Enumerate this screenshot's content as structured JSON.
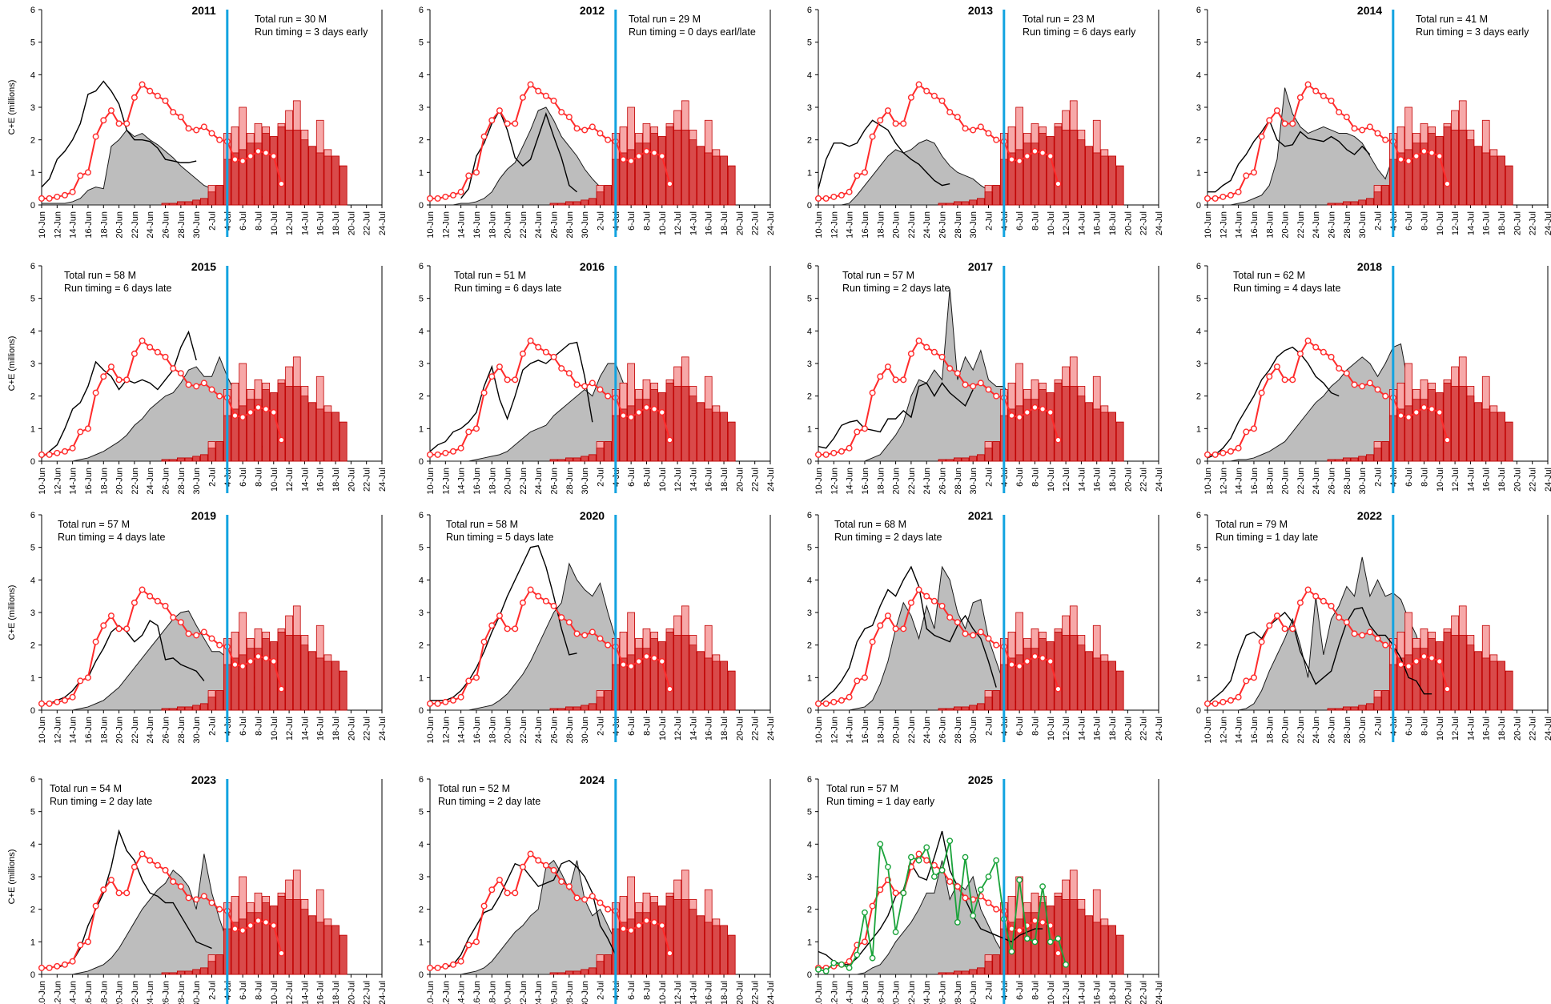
{
  "colors": {
    "gray_fill": "#bdbdbd",
    "gray_stroke": "#1a1a1a",
    "black_line": "#000000",
    "dark_red_bar": "#d94a4a",
    "light_red_bar": "#f7a8a8",
    "bar_stroke": "#c00000",
    "red_line": "#ff2b2b",
    "green_line": "#1aa33a",
    "blue_marker": "#12a3e0"
  },
  "y_axis_label": "C+E (millions)",
  "chart_data": {
    "type": "area",
    "layout": "small-multiples grid, 4 columns x 4 rows, 15 panels",
    "x_tick_labels": [
      "10-Jun",
      "12-Jun",
      "14-Jun",
      "16-Jun",
      "18-Jun",
      "20-Jun",
      "22-Jun",
      "24-Jun",
      "26-Jun",
      "28-Jun",
      "30-Jun",
      "2-Jul",
      "4-Jul",
      "6-Jul",
      "8-Jul",
      "10-Jul",
      "12-Jul",
      "14-Jul",
      "16-Jul",
      "18-Jul",
      "20-Jul",
      "22-Jul",
      "24-Jul"
    ],
    "x_day_range": [
      0,
      44
    ],
    "ylim": [
      0,
      6
    ],
    "y_ticks": [
      0,
      1,
      2,
      3,
      4,
      5,
      6
    ],
    "blue_marker_day": 24,
    "current_year": {
      "bar_start_day": 16,
      "daily_bar_values": [
        0.05,
        0.05,
        0.1,
        0.1,
        0.15,
        0.2,
        0.4,
        0.6,
        1.4,
        1.6,
        1.7,
        1.9,
        1.9,
        2.2,
        2.1,
        2.4,
        2.3,
        2.3,
        2.0,
        1.8,
        1.6,
        1.5,
        1.5,
        1.2
      ],
      "cumulative_bar_values": [
        0.05,
        0.05,
        0.1,
        0.1,
        0.15,
        0.2,
        0.6,
        0.6,
        2.2,
        2.4,
        3.0,
        2.2,
        2.5,
        2.4,
        2.1,
        2.5,
        2.9,
        3.2,
        2.3,
        1.8,
        2.6,
        1.7,
        1.5,
        1.2
      ],
      "comparison_line_start_day": 0,
      "comparison_line": [
        0.2,
        0.2,
        0.25,
        0.3,
        0.4,
        0.9,
        1.0,
        2.1,
        2.6,
        2.9,
        2.5,
        2.5,
        3.3,
        3.7,
        3.5,
        3.35,
        3.2,
        2.85,
        2.7,
        2.35,
        2.3,
        2.4,
        2.2,
        2.0,
        1.95,
        1.4,
        1.35,
        1.5,
        1.65,
        1.6,
        1.5,
        0.65
      ]
    },
    "green_series": {
      "start_day": 0,
      "values": [
        0.15,
        0.1,
        0.35,
        0.3,
        0.2,
        0.6,
        1.9,
        0.5,
        4.0,
        3.3,
        1.3,
        2.5,
        3.6,
        3.5,
        3.9,
        3.0,
        3.2,
        4.1,
        1.6,
        3.6,
        1.8,
        2.6,
        3.0,
        3.5,
        1.7,
        0.7,
        2.9,
        1.1,
        1.0,
        2.7,
        1.0,
        1.1,
        0.3
      ]
    },
    "panels": [
      {
        "year": "2011",
        "total_run": "Total run = 30 M",
        "run_timing": "Run timing = 3 days early",
        "historical_start_day": 0,
        "historical": [
          0.05,
          0.05,
          0.05,
          0.05,
          0.1,
          0.2,
          0.45,
          0.55,
          0.5,
          1.8,
          2.0,
          2.3,
          2.1,
          2.2,
          2.0,
          1.85,
          1.65,
          1.45,
          1.2,
          1.0,
          0.8,
          0.6,
          0.5,
          0.4,
          0.6,
          0.5,
          0.55,
          0.35,
          0.3,
          0.2,
          0.15,
          0.1,
          0.05,
          0.03,
          0.02
        ],
        "line_start_day": 0,
        "line": [
          0.55,
          0.8,
          1.4,
          1.65,
          2.0,
          2.5,
          3.4,
          3.5,
          3.8,
          3.5,
          3.1,
          2.3,
          2.0,
          2.0,
          1.95,
          1.75,
          1.4,
          1.35,
          1.3,
          1.3,
          1.35
        ]
      },
      {
        "year": "2012",
        "total_run": "Total run = 29 M",
        "run_timing": "Run timing = 0 days earl/late",
        "historical_start_day": 0,
        "historical": [
          0,
          0,
          0,
          0,
          0.05,
          0.05,
          0.1,
          0.2,
          0.4,
          0.8,
          1.1,
          1.3,
          1.8,
          2.3,
          2.9,
          3.0,
          2.6,
          2.1,
          1.8,
          1.5,
          1.1,
          0.8,
          0.55,
          0.4,
          0.3,
          0.25,
          0.2,
          0.15,
          0.1,
          0.05,
          0.02
        ],
        "line_start_day": 4,
        "line": [
          0.2,
          0.5,
          1.5,
          1.9,
          2.5,
          2.9,
          2.3,
          1.45,
          1.2,
          1.4,
          2.1,
          2.8,
          2.1,
          1.45,
          0.6,
          0.4
        ]
      },
      {
        "year": "2013",
        "total_run": "Total run = 23 M",
        "run_timing": "Run timing = 6 days early",
        "historical_start_day": 0,
        "historical": [
          0,
          0,
          0,
          0,
          0.05,
          0.3,
          0.6,
          0.9,
          1.2,
          1.5,
          1.7,
          1.6,
          1.7,
          1.9,
          2.0,
          1.9,
          1.5,
          1.2,
          1.0,
          0.9,
          0.8,
          0.6,
          0.45,
          0.3,
          0.15,
          0.05,
          0,
          0,
          0,
          0,
          0
        ],
        "line_start_day": 0,
        "line": [
          0.5,
          1.4,
          1.9,
          1.9,
          1.8,
          1.9,
          2.3,
          2.6,
          2.45,
          2.3,
          1.9,
          1.6,
          1.4,
          1.25,
          1.0,
          0.75,
          0.6,
          0.65
        ]
      },
      {
        "year": "2014",
        "total_run": "Total run = 41 M",
        "run_timing": "Run timing = 3 days early",
        "historical_start_day": 0,
        "historical": [
          0,
          0,
          0,
          0,
          0.05,
          0.1,
          0.2,
          0.3,
          0.6,
          1.4,
          3.6,
          2.8,
          2.4,
          2.2,
          2.3,
          2.4,
          2.3,
          2.2,
          2.2,
          2.1,
          1.9,
          1.5,
          1.1,
          0.8,
          1.5,
          0.9,
          0.5,
          0.3,
          0.1,
          0.05,
          0.02,
          0.01
        ],
        "line_start_day": 0,
        "line": [
          0.4,
          0.4,
          0.6,
          0.75,
          1.25,
          1.55,
          1.95,
          2.25,
          2.6,
          2.0,
          1.8,
          1.85,
          2.25,
          2.05,
          2.0,
          1.95,
          2.1,
          1.95,
          1.7,
          1.55,
          1.8,
          1.55
        ]
      },
      {
        "year": "2015",
        "total_run": "Total run = 58 M",
        "run_timing": "Run timing = 6 days late",
        "historical_start_day": 0,
        "historical": [
          0,
          0,
          0,
          0,
          0,
          0.05,
          0.1,
          0.2,
          0.3,
          0.45,
          0.6,
          0.8,
          1.1,
          1.3,
          1.6,
          1.8,
          2.0,
          2.1,
          2.4,
          2.8,
          2.9,
          2.6,
          2.6,
          3.2,
          2.6,
          2.1,
          1.6,
          1.1,
          0.6,
          0.3
        ],
        "line_start_day": 0,
        "line": [
          0.1,
          0.3,
          0.5,
          1.0,
          1.6,
          1.8,
          2.3,
          3.05,
          2.8,
          2.6,
          2.2,
          2.5,
          2.4,
          2.5,
          2.4,
          2.2,
          2.5,
          2.8,
          3.5,
          3.97,
          3.1
        ]
      },
      {
        "year": "2016",
        "total_run": "Total run = 51 M",
        "run_timing": "Run timing = 6 days late",
        "historical_start_day": 0,
        "historical": [
          0,
          0,
          0,
          0,
          0,
          0,
          0.05,
          0.1,
          0.15,
          0.2,
          0.3,
          0.5,
          0.7,
          0.9,
          1.0,
          1.1,
          1.4,
          1.6,
          1.8,
          2.0,
          2.2,
          2.0,
          2.6,
          3.0,
          3.0,
          2.4,
          2.3,
          2.0,
          1.4,
          1.0,
          0.6,
          0.4
        ],
        "line_start_day": 0,
        "line": [
          0.3,
          0.5,
          0.6,
          0.9,
          1.0,
          1.2,
          1.5,
          2.3,
          2.9,
          1.9,
          1.3,
          2.0,
          2.8,
          3.0,
          3.1,
          3.0,
          3.2,
          3.4,
          3.6,
          3.65,
          2.6,
          1.2
        ]
      },
      {
        "year": "2017",
        "total_run": "Total run = 57 M",
        "run_timing": "Run timing = 2 days late",
        "historical_start_day": 0,
        "historical": [
          0,
          0,
          0,
          0,
          0,
          0,
          0,
          0.1,
          0.2,
          0.5,
          0.8,
          1.2,
          2.0,
          2.5,
          2.4,
          2.8,
          2.5,
          5.3,
          2.5,
          3.2,
          2.8,
          3.4,
          2.5,
          2.3,
          2.3,
          1.9,
          1.4,
          1.1,
          0.7,
          0.1,
          0,
          0,
          0
        ],
        "line_start_day": 0,
        "line": [
          0.45,
          0.4,
          0.7,
          1.1,
          1.2,
          1.25,
          1.0,
          0.95,
          0.9,
          1.3,
          1.3,
          1.55,
          1.35,
          2.3,
          2.4,
          2.0,
          2.4,
          2.1,
          1.9,
          1.7,
          2.2
        ]
      },
      {
        "year": "2018",
        "total_run": "Total run = 62 M",
        "run_timing": "Run timing = 4 days late",
        "historical_start_day": 0,
        "historical": [
          0,
          0,
          0,
          0,
          0.05,
          0.05,
          0.1,
          0.2,
          0.3,
          0.45,
          0.6,
          0.9,
          1.2,
          1.5,
          1.8,
          2.0,
          2.3,
          2.5,
          2.8,
          3.0,
          3.2,
          3.0,
          2.6,
          3.0,
          3.5,
          3.6,
          2.3,
          1.5,
          1.0,
          0.6,
          0.4
        ],
        "line_start_day": 0,
        "line": [
          0.1,
          0.2,
          0.4,
          0.7,
          1.2,
          1.6,
          2.0,
          2.5,
          2.8,
          3.2,
          3.4,
          3.5,
          3.3,
          3.0,
          2.6,
          2.4,
          2.1,
          2.0
        ]
      },
      {
        "year": "2019",
        "total_run": "Total run = 57 M",
        "run_timing": "Run timing = 4 days late",
        "historical_start_day": 0,
        "historical": [
          0,
          0,
          0,
          0,
          0,
          0.05,
          0.1,
          0.2,
          0.3,
          0.5,
          0.7,
          1.0,
          1.3,
          1.6,
          1.9,
          2.2,
          2.5,
          2.8,
          3.0,
          3.05,
          2.6,
          2.2,
          1.8,
          1.8,
          1.6,
          1.8,
          1.5,
          1.0,
          0.4
        ],
        "line_start_day": 0,
        "line": [
          0.2,
          0.2,
          0.3,
          0.4,
          0.6,
          0.9,
          1.0,
          1.5,
          1.9,
          2.4,
          2.6,
          2.4,
          2.1,
          2.3,
          2.75,
          2.6,
          1.55,
          1.6,
          1.4,
          1.3,
          1.2,
          0.9
        ]
      },
      {
        "year": "2020",
        "total_run": "Total run = 58 M",
        "run_timing": "Run timing = 5 days late",
        "historical_start_day": 0,
        "historical": [
          0,
          0,
          0,
          0,
          0,
          0,
          0.05,
          0.1,
          0.15,
          0.3,
          0.5,
          0.8,
          1.1,
          1.5,
          2.0,
          2.5,
          3.0,
          3.3,
          4.5,
          4.0,
          3.7,
          3.5,
          3.9,
          3.0,
          2.2,
          1.5,
          1.0,
          0.9,
          0.8,
          0.5
        ],
        "line_start_day": 0,
        "line": [
          0.3,
          0.3,
          0.3,
          0.4,
          0.6,
          0.9,
          1.3,
          1.8,
          2.4,
          2.9,
          3.5,
          4.0,
          4.5,
          5.0,
          5.05,
          4.4,
          3.5,
          2.5,
          1.7,
          1.75
        ]
      },
      {
        "year": "2021",
        "total_run": "Total run = 68 M",
        "run_timing": "Run timing = 2 days late",
        "historical_start_day": 0,
        "historical": [
          0,
          0,
          0,
          0,
          0,
          0.05,
          0.1,
          0.3,
          0.8,
          1.5,
          2.5,
          3.3,
          2.9,
          2.2,
          3.2,
          2.5,
          4.4,
          4.0,
          3.0,
          2.5,
          3.3,
          3.4,
          2.2,
          1.5,
          0.8,
          0.4,
          0.1,
          0
        ],
        "line_start_day": 0,
        "line": [
          0.2,
          0.4,
          0.6,
          0.9,
          1.3,
          2.1,
          2.5,
          2.6,
          3.2,
          3.7,
          3.5,
          4.0,
          4.4,
          3.8,
          2.5,
          2.3,
          2.2,
          2.1,
          2.6,
          2.9,
          2.5,
          2.2,
          1.5,
          0.7
        ]
      },
      {
        "year": "2022",
        "total_run": "Total run = 79 M",
        "run_timing": "Run timing = 1 day late",
        "historical_start_day": 0,
        "historical": [
          0,
          0,
          0,
          0,
          0,
          0.05,
          0.2,
          0.6,
          1.2,
          1.7,
          2.2,
          2.8,
          2.0,
          1.0,
          3.5,
          1.7,
          2.8,
          3.2,
          3.8,
          3.5,
          4.7,
          3.5,
          4.0,
          3.5,
          3.6,
          3.4,
          2.8,
          2.3,
          1.5,
          0.5,
          0
        ],
        "line_start_day": 0,
        "line": [
          0.2,
          0.4,
          0.6,
          0.9,
          1.7,
          2.3,
          2.4,
          2.2,
          2.6,
          2.8,
          3.0,
          2.7,
          1.8,
          1.3,
          0.8,
          1.0,
          1.2,
          2.0,
          2.7,
          3.1,
          3.15,
          2.6,
          2.3,
          2.3,
          2.0,
          1.6,
          1.0,
          0.9,
          0.5,
          0.5
        ]
      },
      {
        "year": "2023",
        "total_run": "Total run = 54 M",
        "run_timing": "Run timing = 2 day late",
        "historical_start_day": 0,
        "historical": [
          0,
          0,
          0,
          0,
          0,
          0.05,
          0.1,
          0.2,
          0.3,
          0.5,
          0.8,
          1.2,
          1.6,
          2.0,
          2.3,
          2.6,
          2.8,
          3.2,
          3.0,
          2.7,
          2.0,
          3.7,
          2.5,
          1.7,
          1.0,
          1.2,
          0.9,
          0.6,
          0.4,
          0.2
        ],
        "line_start_day": 2,
        "line": [
          0.2,
          0.3,
          0.4,
          0.8,
          1.5,
          2.0,
          2.5,
          3.3,
          4.4,
          3.8,
          3.5,
          2.9,
          2.5,
          2.4,
          2.2,
          2.2,
          1.8,
          1.4,
          1.0,
          0.9,
          0.8
        ]
      },
      {
        "year": "2024",
        "total_run": "Total run = 52 M",
        "run_timing": "Run timing = 2 day late",
        "historical_start_day": 0,
        "historical": [
          0,
          0,
          0,
          0,
          0,
          0.05,
          0.1,
          0.2,
          0.4,
          0.7,
          1.0,
          1.3,
          1.5,
          1.8,
          2.0,
          3.3,
          3.5,
          3.1,
          2.6,
          3.5,
          2.3,
          1.8,
          2.0,
          1.5,
          1.0,
          0.4,
          0.3,
          0.4,
          0.3
        ],
        "line_start_day": 2,
        "line": [
          0.2,
          0.3,
          0.6,
          1.1,
          1.5,
          1.9,
          2.0,
          2.4,
          2.9,
          3.4,
          3.3,
          3.0,
          2.7,
          2.8,
          2.9,
          3.4,
          3.5,
          3.3,
          3.0,
          2.5,
          1.5,
          1.1,
          0.6
        ]
      },
      {
        "year": "2025",
        "total_run": "Total run = 57 M",
        "run_timing": "Run timing = 1 day early",
        "historical_start_day": 0,
        "historical": [
          0,
          0,
          0,
          0,
          0,
          0,
          0.05,
          0.2,
          0.3,
          0.6,
          1.0,
          1.3,
          1.6,
          2.0,
          2.5,
          2.5,
          3.5,
          2.3,
          2.8,
          2.6,
          3.0,
          2.0,
          1.5,
          1.0,
          0.6,
          0.5,
          0.4,
          0.2,
          0.05,
          0
        ],
        "line_start_day": 0,
        "line": [
          0.7,
          0.6,
          0.4,
          0.3,
          0.3,
          0.5,
          0.8,
          1.1,
          1.4,
          1.8,
          2.4,
          2.6,
          3.4,
          3.0,
          2.9,
          3.6,
          4.4,
          3.2,
          2.7,
          2.3,
          1.8,
          1.4,
          1.3,
          1.2,
          1.1,
          1.0,
          1.2,
          1.3,
          1.4,
          1.4
        ]
      }
    ]
  }
}
